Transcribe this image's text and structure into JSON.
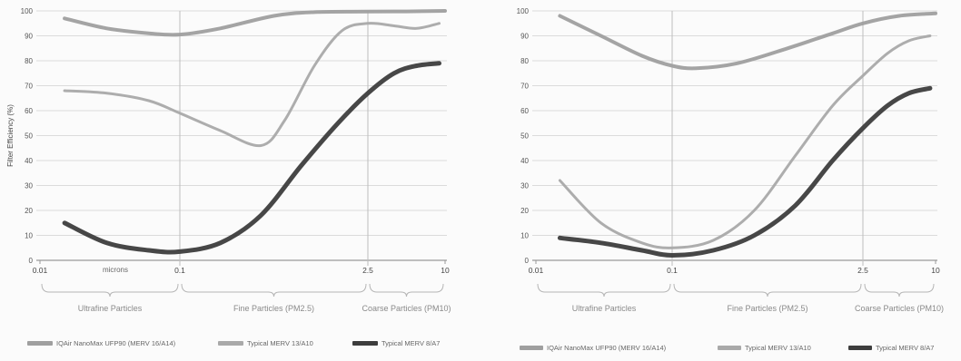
{
  "chart_data": [
    {
      "type": "line",
      "xscale": "log",
      "xlim": [
        0.01,
        10
      ],
      "ylim": [
        0,
        100
      ],
      "ylabel": "Filter Efficiency (%)",
      "x_unit_label": "microns",
      "grid": true,
      "yticks": [
        "0",
        "10",
        "20",
        "30",
        "40",
        "50",
        "60",
        "70",
        "80",
        "90",
        "100"
      ],
      "xticks": [
        {
          "value": 0.01,
          "label": "0.01"
        },
        {
          "value": 0.1,
          "label": "0.1"
        },
        {
          "value": 2.5,
          "label": "2.5"
        },
        {
          "value": 10,
          "label": "10"
        }
      ],
      "regions": [
        {
          "label": "Ultrafine Particles",
          "from": 0.01,
          "to": 0.1
        },
        {
          "label": "Fine Particles (PM2.5)",
          "from": 0.1,
          "to": 2.5
        },
        {
          "label": "Coarse Particles (PM10)",
          "from": 2.5,
          "to": 10
        }
      ],
      "legend_position": "bottom",
      "series": [
        {
          "name": "IQAir NanoMax UFP90 (MERV 16/A14)",
          "color": "#9f9f9f",
          "stroke": 4,
          "points": [
            [
              0.015,
              97
            ],
            [
              0.03,
              93
            ],
            [
              0.06,
              91
            ],
            [
              0.1,
              90.5
            ],
            [
              0.2,
              93
            ],
            [
              0.5,
              98
            ],
            [
              1,
              99.5
            ],
            [
              2.5,
              99.7
            ],
            [
              5,
              99.8
            ],
            [
              10,
              100
            ]
          ]
        },
        {
          "name": "Typical MERV 13/A10",
          "color": "#a9a9a9",
          "stroke": 3,
          "points": [
            [
              0.015,
              68
            ],
            [
              0.03,
              67
            ],
            [
              0.06,
              64
            ],
            [
              0.1,
              59
            ],
            [
              0.2,
              52
            ],
            [
              0.4,
              46
            ],
            [
              0.6,
              56
            ],
            [
              1,
              78
            ],
            [
              1.6,
              92
            ],
            [
              2.5,
              95
            ],
            [
              4,
              94
            ],
            [
              6,
              93
            ],
            [
              9,
              95
            ]
          ]
        },
        {
          "name": "Typical MERV 8/A7",
          "color": "#3d3d3d",
          "stroke": 5,
          "points": [
            [
              0.015,
              15
            ],
            [
              0.03,
              7
            ],
            [
              0.06,
              4
            ],
            [
              0.1,
              3.5
            ],
            [
              0.2,
              7
            ],
            [
              0.4,
              18
            ],
            [
              0.8,
              38
            ],
            [
              1.5,
              55
            ],
            [
              2.5,
              67
            ],
            [
              4,
              75
            ],
            [
              6,
              78
            ],
            [
              9,
              79
            ]
          ]
        }
      ]
    },
    {
      "type": "line",
      "xscale": "log",
      "xlim": [
        0.01,
        10
      ],
      "ylim": [
        0,
        100
      ],
      "grid": true,
      "yticks": [
        "0",
        "10",
        "20",
        "30",
        "40",
        "50",
        "60",
        "70",
        "80",
        "90",
        "100"
      ],
      "xticks": [
        {
          "value": 0.01,
          "label": "0.01"
        },
        {
          "value": 0.1,
          "label": "0.1"
        },
        {
          "value": 2.5,
          "label": "2.5"
        },
        {
          "value": 10,
          "label": "10"
        }
      ],
      "regions": [
        {
          "label": "Ultrafine Particles",
          "from": 0.01,
          "to": 0.1
        },
        {
          "label": "Fine Particles (PM2.5)",
          "from": 0.1,
          "to": 2.5
        },
        {
          "label": "Coarse Particles (PM10)",
          "from": 2.5,
          "to": 10
        }
      ],
      "legend_position": "bottom",
      "series": [
        {
          "name": "IQAir NanoMax UFP90 (MERV 16/A14)",
          "color": "#9f9f9f",
          "stroke": 4,
          "points": [
            [
              0.015,
              98
            ],
            [
              0.03,
              90
            ],
            [
              0.06,
              82
            ],
            [
              0.1,
              78
            ],
            [
              0.15,
              77
            ],
            [
              0.3,
              79
            ],
            [
              0.7,
              85
            ],
            [
              1.5,
              91
            ],
            [
              2.5,
              95
            ],
            [
              5,
              98
            ],
            [
              10,
              99
            ]
          ]
        },
        {
          "name": "Typical MERV 13/A10",
          "color": "#a9a9a9",
          "stroke": 3,
          "points": [
            [
              0.015,
              32
            ],
            [
              0.03,
              15
            ],
            [
              0.06,
              7
            ],
            [
              0.1,
              5
            ],
            [
              0.2,
              8
            ],
            [
              0.4,
              20
            ],
            [
              0.8,
              42
            ],
            [
              1.5,
              62
            ],
            [
              2.5,
              74
            ],
            [
              4,
              83
            ],
            [
              6,
              88
            ],
            [
              9,
              90
            ]
          ]
        },
        {
          "name": "Typical MERV 8/A7",
          "color": "#3d3d3d",
          "stroke": 5,
          "points": [
            [
              0.015,
              9
            ],
            [
              0.03,
              7
            ],
            [
              0.06,
              4
            ],
            [
              0.1,
              2
            ],
            [
              0.2,
              4
            ],
            [
              0.4,
              10
            ],
            [
              0.8,
              22
            ],
            [
              1.5,
              40
            ],
            [
              2.5,
              53
            ],
            [
              4,
              62
            ],
            [
              6,
              67
            ],
            [
              9,
              69
            ]
          ]
        }
      ]
    }
  ]
}
